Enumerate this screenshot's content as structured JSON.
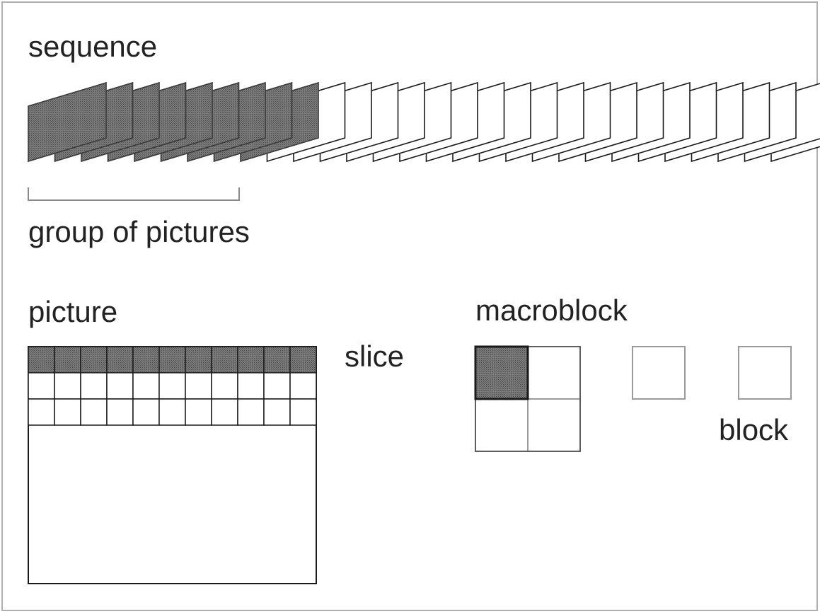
{
  "labels": {
    "sequence": "sequence",
    "group_of_pictures": "group of pictures",
    "picture": "picture",
    "slice": "slice",
    "macroblock": "macroblock",
    "block": "block"
  },
  "sequence": {
    "frame_count": 29,
    "shaded_frame_count": 9
  },
  "picture": {
    "columns": 11,
    "rows": 3,
    "shaded_rows": 1
  },
  "macroblock": {
    "grid": 2,
    "shaded_cells": 1
  },
  "colors": {
    "shade": "#6e6e6e",
    "line": "#1a1a1a",
    "light_line": "#9a9a9a",
    "background": "#ffffff",
    "border": "#b0b0b0"
  }
}
